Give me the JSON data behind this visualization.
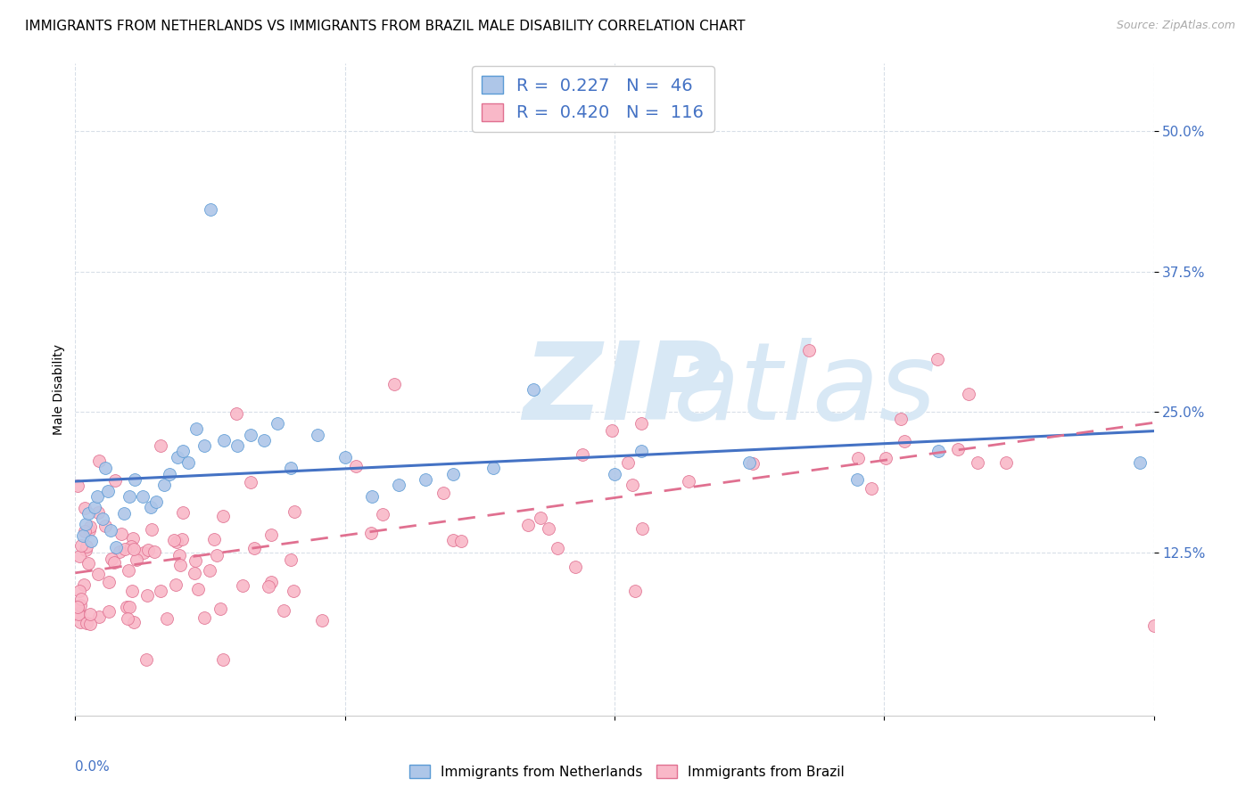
{
  "title": "IMMIGRANTS FROM NETHERLANDS VS IMMIGRANTS FROM BRAZIL MALE DISABILITY CORRELATION CHART",
  "source": "Source: ZipAtlas.com",
  "ylabel": "Male Disability",
  "ytick_labels": [
    "12.5%",
    "25.0%",
    "37.5%",
    "50.0%"
  ],
  "ytick_values": [
    0.125,
    0.25,
    0.375,
    0.5
  ],
  "xlim": [
    0.0,
    0.4
  ],
  "ylim": [
    -0.02,
    0.56
  ],
  "legend_r_nl": "0.227",
  "legend_n_nl": "46",
  "legend_r_br": "0.420",
  "legend_n_br": "116",
  "color_nl_fill": "#aec6e8",
  "color_nl_edge": "#5b9bd5",
  "color_br_fill": "#f9b8c8",
  "color_br_edge": "#e07090",
  "color_line_nl": "#4472c4",
  "color_line_br": "#d46090",
  "title_fontsize": 11,
  "axis_label_fontsize": 10,
  "tick_fontsize": 11,
  "background_color": "#ffffff",
  "grid_color": "#d8dfe8",
  "watermark_color": "#d8e8f5"
}
